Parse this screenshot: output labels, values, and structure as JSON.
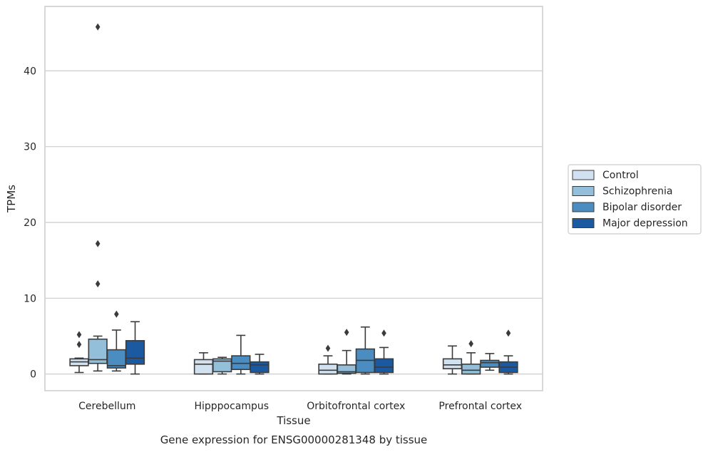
{
  "caption": "Gene expression for ENSG00000281348 by tissue",
  "colors": {
    "Control": "#d1e1f0",
    "Schizophrenia": "#93bfdb",
    "Bipolar disorder": "#4b8dc0",
    "Major depression": "#1b5aa0",
    "grid": "#cccccc",
    "frame": "#cccccc",
    "stroke": "#3b3b3b"
  },
  "chart_data": {
    "type": "boxplot",
    "title": "",
    "xlabel": "Tissue",
    "ylabel": "TPMs",
    "ylim": [
      -2.2,
      48.5
    ],
    "yticks": [
      0,
      10,
      20,
      30,
      40
    ],
    "grid": true,
    "legend_position": "right",
    "categories": [
      "Cerebellum",
      "Hipppocampus",
      "Orbitofrontal cortex",
      "Prefrontal cortex"
    ],
    "series": [
      {
        "name": "Control",
        "boxes": [
          {
            "whislo": 0.2,
            "q1": 1.1,
            "med": 1.6,
            "q3": 2.0,
            "whishi": 2.1,
            "fliers": [
              5.2,
              3.9
            ]
          },
          {
            "whislo": 0.0,
            "q1": 0.0,
            "med": 1.3,
            "q3": 1.9,
            "whishi": 2.8,
            "fliers": []
          },
          {
            "whislo": 0.0,
            "q1": 0.0,
            "med": 0.5,
            "q3": 1.3,
            "whishi": 2.4,
            "fliers": [
              3.4
            ]
          },
          {
            "whislo": 0.0,
            "q1": 0.7,
            "med": 1.2,
            "q3": 2.0,
            "whishi": 3.7,
            "fliers": []
          }
        ]
      },
      {
        "name": "Schizophrenia",
        "boxes": [
          {
            "whislo": 0.4,
            "q1": 1.4,
            "med": 1.9,
            "q3": 4.6,
            "whishi": 5.0,
            "fliers": [
              45.8,
              17.2,
              11.9
            ]
          },
          {
            "whislo": 0.0,
            "q1": 0.3,
            "med": 1.7,
            "q3": 2.0,
            "whishi": 2.2,
            "fliers": []
          },
          {
            "whislo": 0.0,
            "q1": 0.1,
            "med": 0.3,
            "q3": 1.2,
            "whishi": 3.1,
            "fliers": [
              5.5
            ]
          },
          {
            "whislo": 0.0,
            "q1": 0.0,
            "med": 0.5,
            "q3": 1.3,
            "whishi": 2.8,
            "fliers": [
              4.0
            ]
          }
        ]
      },
      {
        "name": "Bipolar disorder",
        "boxes": [
          {
            "whislo": 0.4,
            "q1": 0.8,
            "med": 1.1,
            "q3": 3.2,
            "whishi": 5.8,
            "fliers": [
              7.9
            ]
          },
          {
            "whislo": 0.0,
            "q1": 0.6,
            "med": 1.4,
            "q3": 2.4,
            "whishi": 5.1,
            "fliers": []
          },
          {
            "whislo": 0.0,
            "q1": 0.2,
            "med": 1.8,
            "q3": 3.3,
            "whishi": 6.2,
            "fliers": []
          },
          {
            "whislo": 0.5,
            "q1": 0.9,
            "med": 1.5,
            "q3": 1.8,
            "whishi": 2.7,
            "fliers": []
          }
        ]
      },
      {
        "name": "Major depression",
        "boxes": [
          {
            "whislo": 0.0,
            "q1": 1.3,
            "med": 2.1,
            "q3": 4.4,
            "whishi": 6.9,
            "fliers": []
          },
          {
            "whislo": 0.0,
            "q1": 0.2,
            "med": 1.2,
            "q3": 1.6,
            "whishi": 2.6,
            "fliers": []
          },
          {
            "whislo": 0.0,
            "q1": 0.2,
            "med": 0.9,
            "q3": 2.0,
            "whishi": 3.5,
            "fliers": [
              5.4
            ]
          },
          {
            "whislo": 0.0,
            "q1": 0.2,
            "med": 0.9,
            "q3": 1.6,
            "whishi": 2.4,
            "fliers": [
              5.4
            ]
          }
        ]
      }
    ]
  }
}
